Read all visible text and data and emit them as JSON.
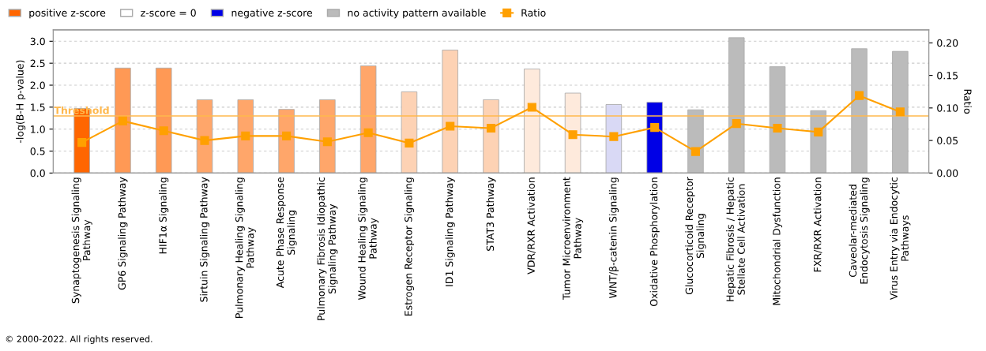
{
  "chart_data": {
    "type": "bar",
    "categories": [
      "Synaptogenesis Signaling\nPathway",
      "GP6 Signaling Pathway",
      "HIF1α Signaling",
      "Sirtuin Signaling Pathway",
      "Pulmonary Healing Signaling\nPathway",
      "Acute Phase Response\nSignaling",
      "Pulmonary Fibrosis Idiopathic\nSignaling Pathway",
      "Wound Healing Signaling\nPathway",
      "Estrogen Receptor Signaling",
      "ID1 Signaling Pathway",
      "STAT3 Pathway",
      "VDR/RXR Activation",
      "Tumor Microenvironment\nPathway",
      "WNT/β-catenin Signaling",
      "Oxidative Phosphorylation",
      "Glucocorticoid Receptor\nSignaling",
      "Hepatic Fibrosis / Hepatic\nStellate Cell Activation",
      "Mitochondrial Dysfunction",
      "FXR/RXR Activation",
      "Caveolar-mediated\nEndocytosis Signaling",
      "Virus Entry via Endocytic\nPathways"
    ],
    "series": [
      {
        "name": "positive z-score",
        "color": "#ff6600",
        "values": [
          1.47,
          2.39,
          2.39,
          1.67,
          1.67,
          1.45,
          1.67,
          2.44,
          1.85,
          2.8,
          1.67,
          2.37,
          1.82,
          null,
          null,
          null,
          null,
          null,
          null,
          null,
          null
        ],
        "colors": [
          "#ff6600",
          "#ff9955",
          "#ff9955",
          "#ffa66a",
          "#ffa66a",
          "#ffa66a",
          "#ffa66a",
          "#ffa66a",
          "#fdd2b4",
          "#fdd2b4",
          "#fdd2b4",
          "#feeadc",
          "#feeadc",
          null,
          null,
          null,
          null,
          null,
          null,
          null,
          null
        ]
      },
      {
        "name": "z-score = 0",
        "color": "#ffffff",
        "values": [
          null,
          null,
          null,
          null,
          null,
          null,
          null,
          null,
          null,
          null,
          null,
          null,
          null,
          null,
          null,
          null,
          null,
          null,
          null,
          null,
          null
        ]
      },
      {
        "name": "negative z-score",
        "color": "#0000e6",
        "values": [
          null,
          null,
          null,
          null,
          null,
          null,
          null,
          null,
          null,
          null,
          null,
          null,
          null,
          1.56,
          1.61,
          null,
          null,
          null,
          null,
          null,
          null
        ],
        "colors": [
          null,
          null,
          null,
          null,
          null,
          null,
          null,
          null,
          null,
          null,
          null,
          null,
          null,
          "#d9d9f5",
          "#0000e6",
          null,
          null,
          null,
          null,
          null,
          null
        ]
      },
      {
        "name": "no activity pattern available",
        "color": "#bbbbbb",
        "values": [
          null,
          null,
          null,
          null,
          null,
          null,
          null,
          null,
          null,
          null,
          null,
          null,
          null,
          null,
          null,
          1.44,
          3.08,
          2.42,
          1.42,
          2.83,
          2.77
        ],
        "colors": [
          null,
          null,
          null,
          null,
          null,
          null,
          null,
          null,
          null,
          null,
          null,
          null,
          null,
          null,
          null,
          "#bbbbbb",
          "#bbbbbb",
          "#bbbbbb",
          "#bbbbbb",
          "#bbbbbb",
          "#bbbbbb"
        ]
      },
      {
        "name": "Ratio",
        "type": "line",
        "axis": "y2",
        "color": "#ffa000",
        "marker": "square",
        "values": [
          0.047,
          0.08,
          0.065,
          0.05,
          0.057,
          0.057,
          0.048,
          0.062,
          0.046,
          0.072,
          0.069,
          0.101,
          0.059,
          0.056,
          0.07,
          0.033,
          0.076,
          0.069,
          0.063,
          0.119,
          0.094
        ]
      }
    ],
    "ylabel": "-log(B-H p-value)",
    "y2label": "Ratio",
    "ylim": [
      0,
      3.26
    ],
    "yticks": [
      {
        "value": 0,
        "label": "0.0"
      },
      {
        "value": 0.5,
        "label": "0.5"
      },
      {
        "value": 1,
        "label": "1.0"
      },
      {
        "value": 1.5,
        "label": "1.5"
      },
      {
        "value": 2,
        "label": "2.0"
      },
      {
        "value": 2.5,
        "label": "2.5"
      },
      {
        "value": 3,
        "label": "3.0"
      }
    ],
    "y2lim": [
      0,
      0.22
    ],
    "y2ticks": [
      {
        "value": 0,
        "label": "0.00"
      },
      {
        "value": 0.05,
        "label": "0.05"
      },
      {
        "value": 0.1,
        "label": "0.10"
      },
      {
        "value": 0.15,
        "label": "0.15"
      },
      {
        "value": 0.2,
        "label": "0.20"
      }
    ],
    "ref_lines": [
      {
        "axis": "y",
        "value": 1.3,
        "label": "Threshold",
        "color": "#ffb84d"
      }
    ],
    "grid": "y",
    "legend": "top left",
    "annotations": [
      "© 2000-2022. All rights reserved."
    ]
  }
}
